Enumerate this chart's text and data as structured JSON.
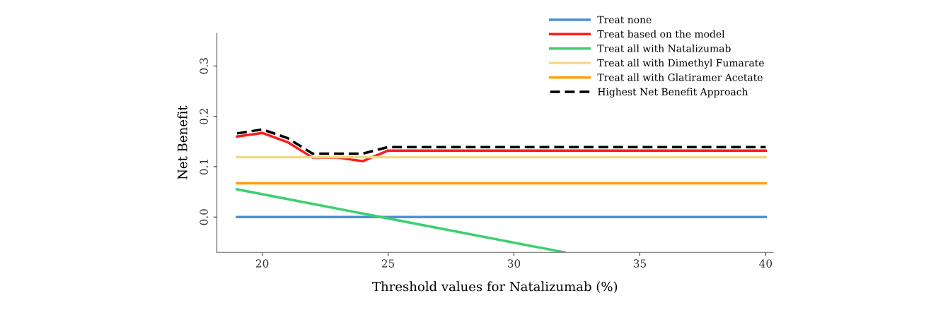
{
  "chart_data": {
    "type": "line",
    "xlabel": "Threshold values for Natalizumab (%)",
    "ylabel": "Net Benefit",
    "xlim": [
      18.2,
      40.3
    ],
    "ylim": [
      -0.07,
      0.365
    ],
    "xticks": [
      20,
      25,
      30,
      35,
      40
    ],
    "yticks": [
      {
        "value": 0,
        "label": "0.0"
      },
      {
        "value": 0.1,
        "label": "0.1"
      },
      {
        "value": 0.2,
        "label": "0.2"
      },
      {
        "value": 0.3,
        "label": "0.3"
      }
    ],
    "grid": false,
    "legend": "top right",
    "marker": "none",
    "series": [
      {
        "name": "Treat none",
        "color": "#4a90d9",
        "x": [
          19,
          40
        ],
        "values": [
          0,
          0
        ]
      },
      {
        "name": "Treat based on the model",
        "color": "#ff1a1a",
        "x": [
          19,
          20,
          21,
          22,
          23,
          24,
          25,
          40
        ],
        "values": [
          0.16,
          0.167,
          0.149,
          0.118,
          0.118,
          0.111,
          0.132,
          0.132
        ]
      },
      {
        "name": "Treat all with Natalizumab",
        "color": "#3ecf6e",
        "x": [
          19,
          32
        ],
        "values": [
          0.055,
          -0.07
        ]
      },
      {
        "name": "Treat all with Dimethyl Fumarate",
        "color": "#f0d98a",
        "x": [
          19,
          40
        ],
        "values": [
          0.119,
          0.119
        ]
      },
      {
        "name": "Treat all with Glatiramer Acetate",
        "color": "#ff9f10",
        "x": [
          19,
          40
        ],
        "values": [
          0.067,
          0.067
        ]
      },
      {
        "name": "Highest Net Benefit Approach",
        "color": "#000000",
        "line_style": "dashed",
        "x": [
          19,
          20,
          21,
          22,
          24,
          25,
          40
        ],
        "values": [
          0.166,
          0.174,
          0.157,
          0.126,
          0.126,
          0.139,
          0.139
        ]
      }
    ]
  }
}
